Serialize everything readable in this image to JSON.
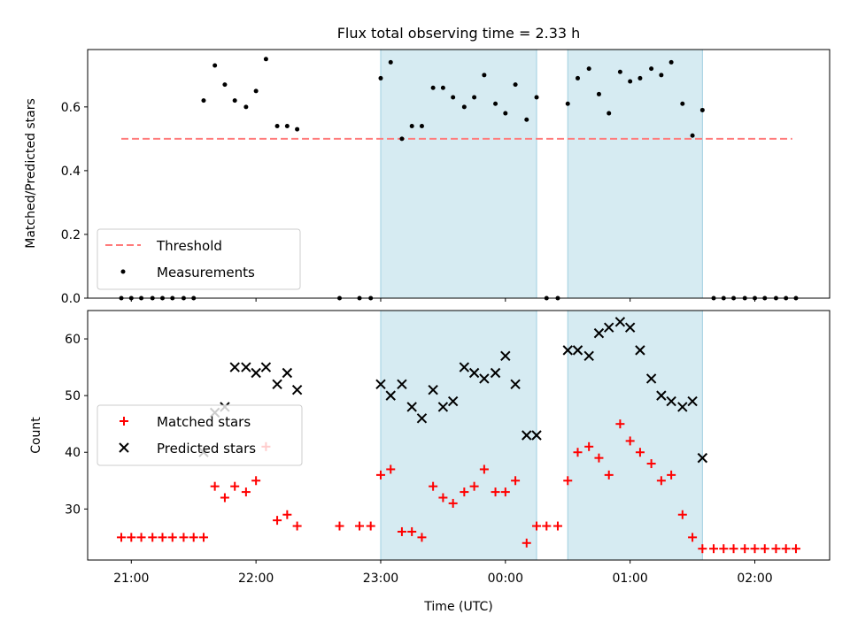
{
  "chart_data": {
    "title": "Flux total observing time = 2.33 h",
    "xlabel": "Time (UTC)",
    "x_unit": "hours since 21:00 UTC",
    "xlim": [
      -0.35,
      5.6
    ],
    "x_ticks": [
      {
        "x": 0,
        "label": "21:00"
      },
      {
        "x": 1,
        "label": "22:00"
      },
      {
        "x": 2,
        "label": "23:00"
      },
      {
        "x": 3,
        "label": "00:00"
      },
      {
        "x": 4,
        "label": "01:00"
      },
      {
        "x": 5,
        "label": "02:00"
      }
    ],
    "shaded_intervals": [
      [
        2.0,
        3.25
      ],
      [
        3.5,
        4.58
      ]
    ],
    "shade_color": "#add8e6",
    "panels": [
      {
        "type": "scatter",
        "ylabel": "Matched/Predicted stars",
        "ylim": [
          0,
          0.78
        ],
        "yticks": [
          0.0,
          0.2,
          0.4,
          0.6
        ],
        "ytick_labels": [
          "0.0",
          "0.2",
          "0.4",
          "0.6"
        ],
        "legend": {
          "placement": "lower-left",
          "entries": [
            "Threshold",
            "Measurements"
          ]
        },
        "threshold": {
          "name": "Threshold",
          "y": 0.5,
          "x_range": [
            -0.08,
            5.3
          ],
          "color": "#ff7b7b"
        },
        "measurements": {
          "name": "Measurements",
          "color": "#000000",
          "x": [
            -0.08,
            0.0,
            0.08,
            0.17,
            0.25,
            0.33,
            0.42,
            0.5,
            0.58,
            0.67,
            0.75,
            0.83,
            0.92,
            1.0,
            1.08,
            1.17,
            1.25,
            1.33,
            1.67,
            1.83,
            1.92,
            2.0,
            2.08,
            2.17,
            2.25,
            2.33,
            2.42,
            2.5,
            2.58,
            2.67,
            2.75,
            2.83,
            2.92,
            3.0,
            3.08,
            3.17,
            3.25,
            3.33,
            3.42,
            3.5,
            3.58,
            3.67,
            3.75,
            3.83,
            3.92,
            4.0,
            4.08,
            4.17,
            4.25,
            4.33,
            4.42,
            4.5,
            4.58,
            4.67,
            4.75,
            4.83,
            4.92,
            5.0,
            5.08,
            5.17,
            5.25,
            5.33
          ],
          "y": [
            0,
            0,
            0,
            0,
            0,
            0,
            0,
            0,
            0.62,
            0.73,
            0.67,
            0.62,
            0.6,
            0.65,
            0.75,
            0.54,
            0.54,
            0.53,
            0,
            0,
            0,
            0.69,
            0.74,
            0.5,
            0.54,
            0.54,
            0.66,
            0.66,
            0.63,
            0.6,
            0.63,
            0.7,
            0.61,
            0.58,
            0.67,
            0.56,
            0.63,
            0,
            0,
            0.61,
            0.69,
            0.72,
            0.64,
            0.58,
            0.71,
            0.68,
            0.69,
            0.72,
            0.7,
            0.74,
            0.61,
            0.51,
            0.59,
            0,
            0,
            0,
            0,
            0,
            0,
            0,
            0,
            0
          ]
        }
      },
      {
        "type": "scatter",
        "ylabel": "Count",
        "ylim": [
          21,
          65
        ],
        "yticks": [
          30,
          40,
          50,
          60
        ],
        "ytick_labels": [
          "30",
          "40",
          "50",
          "60"
        ],
        "legend": {
          "placement": "center-left",
          "entries": [
            "Matched stars",
            "Predicted stars"
          ]
        },
        "series": [
          {
            "name": "Matched stars",
            "marker": "plus",
            "color": "#ff0000",
            "x": [
              -0.08,
              0.0,
              0.08,
              0.17,
              0.25,
              0.33,
              0.42,
              0.5,
              0.58,
              0.67,
              0.75,
              0.83,
              0.92,
              1.0,
              1.08,
              1.17,
              1.25,
              1.33,
              1.67,
              1.83,
              1.92,
              2.0,
              2.08,
              2.17,
              2.25,
              2.33,
              2.42,
              2.5,
              2.58,
              2.67,
              2.75,
              2.83,
              2.92,
              3.0,
              3.08,
              3.17,
              3.25,
              3.33,
              3.42,
              3.5,
              3.58,
              3.67,
              3.75,
              3.83,
              3.92,
              4.0,
              4.08,
              4.17,
              4.25,
              4.33,
              4.42,
              4.5,
              4.58,
              4.67,
              4.75,
              4.83,
              4.92,
              5.0,
              5.08,
              5.17,
              5.25,
              5.33
            ],
            "y": [
              25,
              25,
              25,
              25,
              25,
              25,
              25,
              25,
              25,
              34,
              32,
              34,
              33,
              35,
              41,
              28,
              29,
              27,
              27,
              27,
              27,
              36,
              37,
              26,
              26,
              25,
              34,
              32,
              31,
              33,
              34,
              37,
              33,
              33,
              35,
              24,
              27,
              27,
              27,
              35,
              40,
              41,
              39,
              36,
              45,
              42,
              40,
              38,
              35,
              36,
              29,
              25,
              23,
              23,
              23,
              23,
              23,
              23,
              23,
              23,
              23,
              23
            ]
          },
          {
            "name": "Predicted stars",
            "marker": "x",
            "color": "#000000",
            "x": [
              0.58,
              0.67,
              0.75,
              0.83,
              0.92,
              1.0,
              1.08,
              1.17,
              1.25,
              1.33,
              2.0,
              2.08,
              2.17,
              2.25,
              2.33,
              2.42,
              2.5,
              2.58,
              2.67,
              2.75,
              2.83,
              2.92,
              3.0,
              3.08,
              3.17,
              3.25,
              3.5,
              3.58,
              3.67,
              3.75,
              3.83,
              3.92,
              4.0,
              4.08,
              4.17,
              4.25,
              4.33,
              4.42,
              4.5,
              4.58
            ],
            "y": [
              40,
              47,
              48,
              55,
              55,
              54,
              55,
              52,
              54,
              51,
              52,
              50,
              52,
              48,
              46,
              51,
              48,
              49,
              55,
              54,
              53,
              54,
              57,
              52,
              43,
              43,
              58,
              58,
              57,
              61,
              62,
              63,
              62,
              58,
              53,
              50,
              49,
              48,
              49,
              39
            ]
          }
        ]
      }
    ]
  }
}
